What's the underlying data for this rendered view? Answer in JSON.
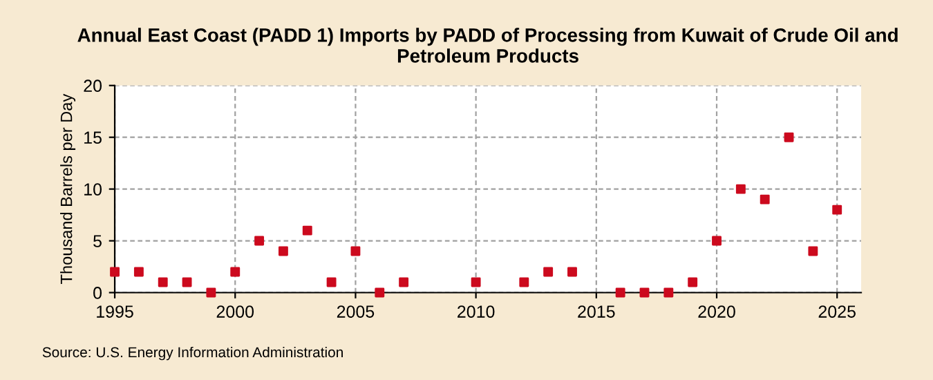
{
  "chart_data": {
    "type": "scatter",
    "title": "Annual East Coast (PADD 1) Imports by PADD of Processing from Kuwait of Crude Oil and\nPetroleum Products",
    "ylabel": "Thousand Barrels per Day",
    "x": [
      1995,
      1996,
      1997,
      1998,
      1999,
      2000,
      2001,
      2002,
      2003,
      2004,
      2005,
      2006,
      2007,
      2010,
      2012,
      2013,
      2014,
      2016,
      2017,
      2018,
      2019,
      2020,
      2021,
      2022,
      2023,
      2024,
      2025
    ],
    "series": [
      {
        "color": "#cc0a1e",
        "values": [
          2,
          2,
          1,
          1,
          0,
          2,
          5,
          4,
          6,
          1,
          4,
          0,
          1,
          1,
          1,
          2,
          2,
          0,
          0,
          0,
          1,
          5,
          10,
          9,
          15,
          4,
          8
        ]
      }
    ],
    "xlim": [
      1995,
      2026
    ],
    "xticks": [
      1995,
      2000,
      2005,
      2010,
      2015,
      2020,
      2025
    ],
    "ylim": [
      0,
      20
    ],
    "yticks": [
      0,
      5,
      10,
      15,
      20
    ],
    "grid": true,
    "marker": "square",
    "annotations": [
      "Source: U.S. Energy Information Administration"
    ]
  }
}
